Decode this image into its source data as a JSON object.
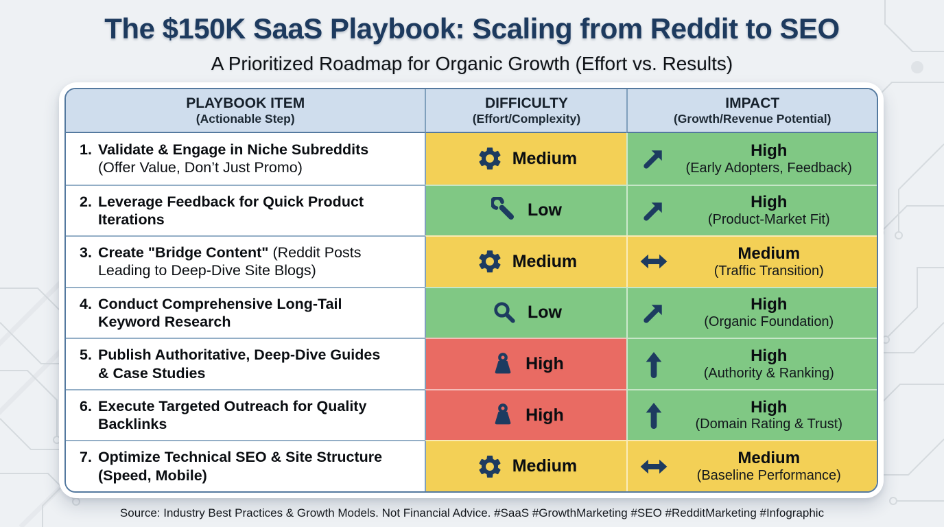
{
  "page": {
    "title": "The $150K SaaS Playbook: Scaling from Reddit to SEO",
    "subtitle": "A Prioritized Roadmap for Organic Growth (Effort vs. Results)",
    "footer": "Source: Industry Best Practices & Growth Models. Not Financial Advice. #SaaS #GrowthMarketing #SEO #RedditMarketing #Infographic"
  },
  "colors": {
    "title_navy": "#1d3a5e",
    "header_bg": "#cfdded",
    "table_border": "#54799f",
    "difficulty_medium_yellow": "#f3d056",
    "difficulty_low_green": "#80c884",
    "difficulty_high_red": "#e96b63",
    "impact_high_green": "#80c884",
    "impact_medium_yellow": "#f3d056",
    "icon_navy": "#1d3b60",
    "page_background": "#eef1f4"
  },
  "table": {
    "headers": [
      {
        "label": "PLAYBOOK ITEM",
        "sub": "(Actionable Step)"
      },
      {
        "label": "DIFFICULTY",
        "sub": "(Effort/Complexity)"
      },
      {
        "label": "IMPACT",
        "sub": "(Growth/Revenue Potential)"
      }
    ],
    "rows": [
      {
        "num": "1.",
        "item_bold": "Validate & Engage in Niche Subreddits",
        "item_rest": "(Offer Value, Don’t Just Promo)",
        "difficulty": {
          "level": "Medium",
          "icon": "gear-icon",
          "color": "yellow"
        },
        "impact": {
          "level": "High",
          "detail": "(Early Adopters, Feedback)",
          "icon": "arrow-up-right-icon",
          "color": "green"
        }
      },
      {
        "num": "2.",
        "item_bold": "Leverage Feedback for Quick Product Iterations",
        "item_rest": "",
        "difficulty": {
          "level": "Low",
          "icon": "wrench-icon",
          "color": "green"
        },
        "impact": {
          "level": "High",
          "detail": "(Product-Market Fit)",
          "icon": "arrow-up-right-icon",
          "color": "green"
        }
      },
      {
        "num": "3.",
        "item_bold": "Create \"Bridge Content\"",
        "item_rest": "(Reddit Posts Leading to Deep-Dive Site Blogs)",
        "difficulty": {
          "level": "Medium",
          "icon": "gear-icon",
          "color": "yellow"
        },
        "impact": {
          "level": "Medium",
          "detail": "(Traffic Transition)",
          "icon": "arrow-left-right-icon",
          "color": "yellow"
        }
      },
      {
        "num": "4.",
        "item_bold": "Conduct Comprehensive Long-Tail Keyword Research",
        "item_rest": "",
        "difficulty": {
          "level": "Low",
          "icon": "magnifier-icon",
          "color": "green"
        },
        "impact": {
          "level": "High",
          "detail": "(Organic Foundation)",
          "icon": "arrow-up-right-icon",
          "color": "green"
        }
      },
      {
        "num": "5.",
        "item_bold": "Publish Authoritative, Deep-Dive Guides & Case Studies",
        "item_rest": "",
        "difficulty": {
          "level": "High",
          "icon": "weight-icon",
          "color": "red"
        },
        "impact": {
          "level": "High",
          "detail": "(Authority & Ranking)",
          "icon": "arrow-up-icon",
          "color": "green"
        }
      },
      {
        "num": "6.",
        "item_bold": "Execute Targeted Outreach for Quality Backlinks",
        "item_rest": "",
        "difficulty": {
          "level": "High",
          "icon": "weight-icon",
          "color": "red"
        },
        "impact": {
          "level": "High",
          "detail": "(Domain Rating & Trust)",
          "icon": "arrow-up-icon",
          "color": "green"
        }
      },
      {
        "num": "7.",
        "item_bold": "Optimize Technical SEO & Site Structure (Speed, Mobile)",
        "item_rest": "",
        "difficulty": {
          "level": "Medium",
          "icon": "gear-icon",
          "color": "yellow"
        },
        "impact": {
          "level": "Medium",
          "detail": "(Baseline Performance)",
          "icon": "arrow-left-right-icon",
          "color": "yellow"
        }
      }
    ]
  },
  "chart_data": {
    "type": "table",
    "title": "The $150K SaaS Playbook: Scaling from Reddit to SEO",
    "subtitle": "A Prioritized Roadmap for Organic Growth (Effort vs. Results)",
    "columns": [
      "PLAYBOOK ITEM (Actionable Step)",
      "DIFFICULTY (Effort/Complexity)",
      "IMPACT (Growth/Revenue Potential)"
    ],
    "rows": [
      [
        "1. Validate & Engage in Niche Subreddits (Offer Value, Don’t Just Promo)",
        "Medium",
        "High (Early Adopters, Feedback)"
      ],
      [
        "2. Leverage Feedback for Quick Product Iterations",
        "Low",
        "High (Product-Market Fit)"
      ],
      [
        "3. Create \"Bridge Content\" (Reddit Posts Leading to Deep-Dive Site Blogs)",
        "Medium",
        "Medium (Traffic Transition)"
      ],
      [
        "4. Conduct Comprehensive Long-Tail Keyword Research",
        "Low",
        "High (Organic Foundation)"
      ],
      [
        "5. Publish Authoritative, Deep-Dive Guides & Case Studies",
        "High",
        "High (Authority & Ranking)"
      ],
      [
        "6. Execute Targeted Outreach for Quality Backlinks",
        "High",
        "High (Domain Rating & Trust)"
      ],
      [
        "7. Optimize Technical SEO & Site Structure (Speed, Mobile)",
        "Medium",
        "Medium (Baseline Performance)"
      ]
    ]
  }
}
